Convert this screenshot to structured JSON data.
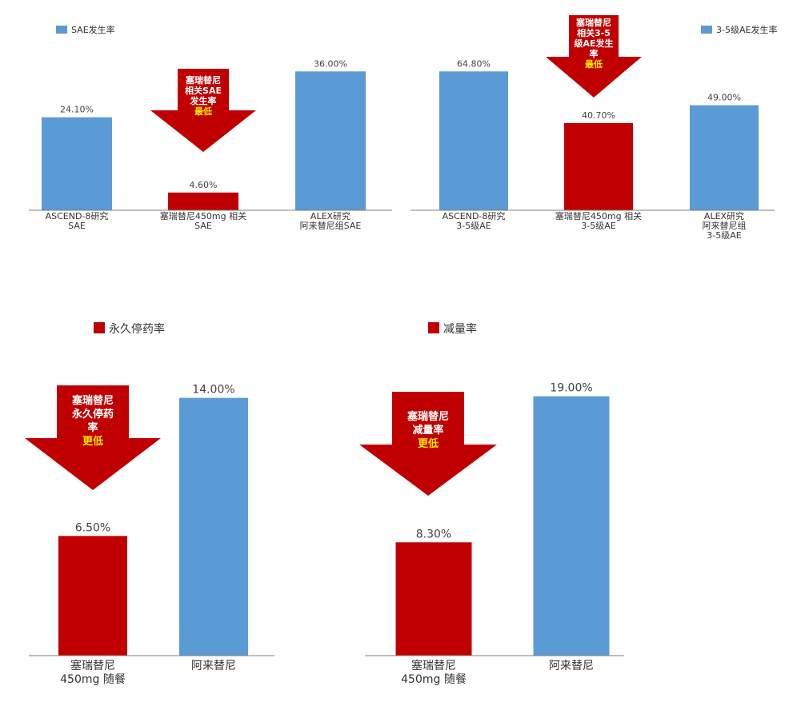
{
  "colors": {
    "blue": "#5b9bd5",
    "red": "#c00000",
    "axis": "#7f7f7f",
    "highlight": "#ffe600"
  },
  "chart_data": [
    {
      "type": "bar",
      "legend": [
        {
          "label": "SAE发生率",
          "color": "#5b9bd5"
        }
      ],
      "legend_position": "top-left",
      "categories": [
        [
          "ASCEND-8研究",
          "SAE"
        ],
        [
          "塞瑞替尼450mg 相关",
          "SAE"
        ],
        [
          "ALEX研究",
          "阿来替尼组SAE"
        ]
      ],
      "values": [
        24.1,
        4.6,
        36.0
      ],
      "value_labels": [
        "24.10%",
        "4.60%",
        "36.00%"
      ],
      "bar_colors": [
        "#5b9bd5",
        "#c00000",
        "#5b9bd5"
      ],
      "ylim": [
        0,
        40
      ],
      "grid": false,
      "annotation": {
        "lines": [
          "塞瑞替尼",
          "相关SAE",
          "发生率"
        ],
        "highlight": "最低"
      }
    },
    {
      "type": "bar",
      "legend": [
        {
          "label": "3-5级AE发生率",
          "color": "#5b9bd5"
        }
      ],
      "legend_position": "top-right",
      "categories": [
        [
          "ASCEND-8研究",
          "3-5级AE"
        ],
        [
          "塞瑞替尼450mg 相关",
          "3-5级AE"
        ],
        [
          "ALEX研究",
          "阿来替尼组",
          "3-5级AE"
        ]
      ],
      "values": [
        64.8,
        40.7,
        49.0
      ],
      "value_labels": [
        "64.80%",
        "40.70%",
        "49.00%"
      ],
      "bar_colors": [
        "#5b9bd5",
        "#c00000",
        "#5b9bd5"
      ],
      "ylim": [
        0,
        72
      ],
      "grid": false,
      "annotation": {
        "lines": [
          "塞瑞替尼",
          "相关3-5",
          "级AE发生",
          "率"
        ],
        "highlight": "最低"
      }
    },
    {
      "type": "bar",
      "legend": [
        {
          "label": "永久停药率",
          "color": "#c00000"
        }
      ],
      "legend_position": "top-left",
      "categories": [
        [
          "塞瑞替尼",
          "450mg 随餐"
        ],
        [
          "阿来替尼"
        ]
      ],
      "values": [
        6.5,
        14.0
      ],
      "value_labels": [
        "6.50%",
        "14.00%"
      ],
      "bar_colors": [
        "#c00000",
        "#5b9bd5"
      ],
      "ylim": [
        0,
        15.2
      ],
      "grid": false,
      "annotation": {
        "lines": [
          "塞瑞替尼",
          "永久停药",
          "率"
        ],
        "highlight": "更低"
      }
    },
    {
      "type": "bar",
      "legend": [
        {
          "label": "减量率",
          "color": "#c00000"
        }
      ],
      "legend_position": "top-left",
      "categories": [
        [
          "塞瑞替尼",
          "450mg 随餐"
        ],
        [
          "阿来替尼"
        ]
      ],
      "values": [
        8.3,
        19.0
      ],
      "value_labels": [
        "8.30%",
        "19.00%"
      ],
      "bar_colors": [
        "#c00000",
        "#5b9bd5"
      ],
      "ylim": [
        0,
        20.5
      ],
      "grid": false,
      "annotation": {
        "lines": [
          "塞瑞替尼",
          "减量率"
        ],
        "highlight": "更低"
      }
    }
  ]
}
